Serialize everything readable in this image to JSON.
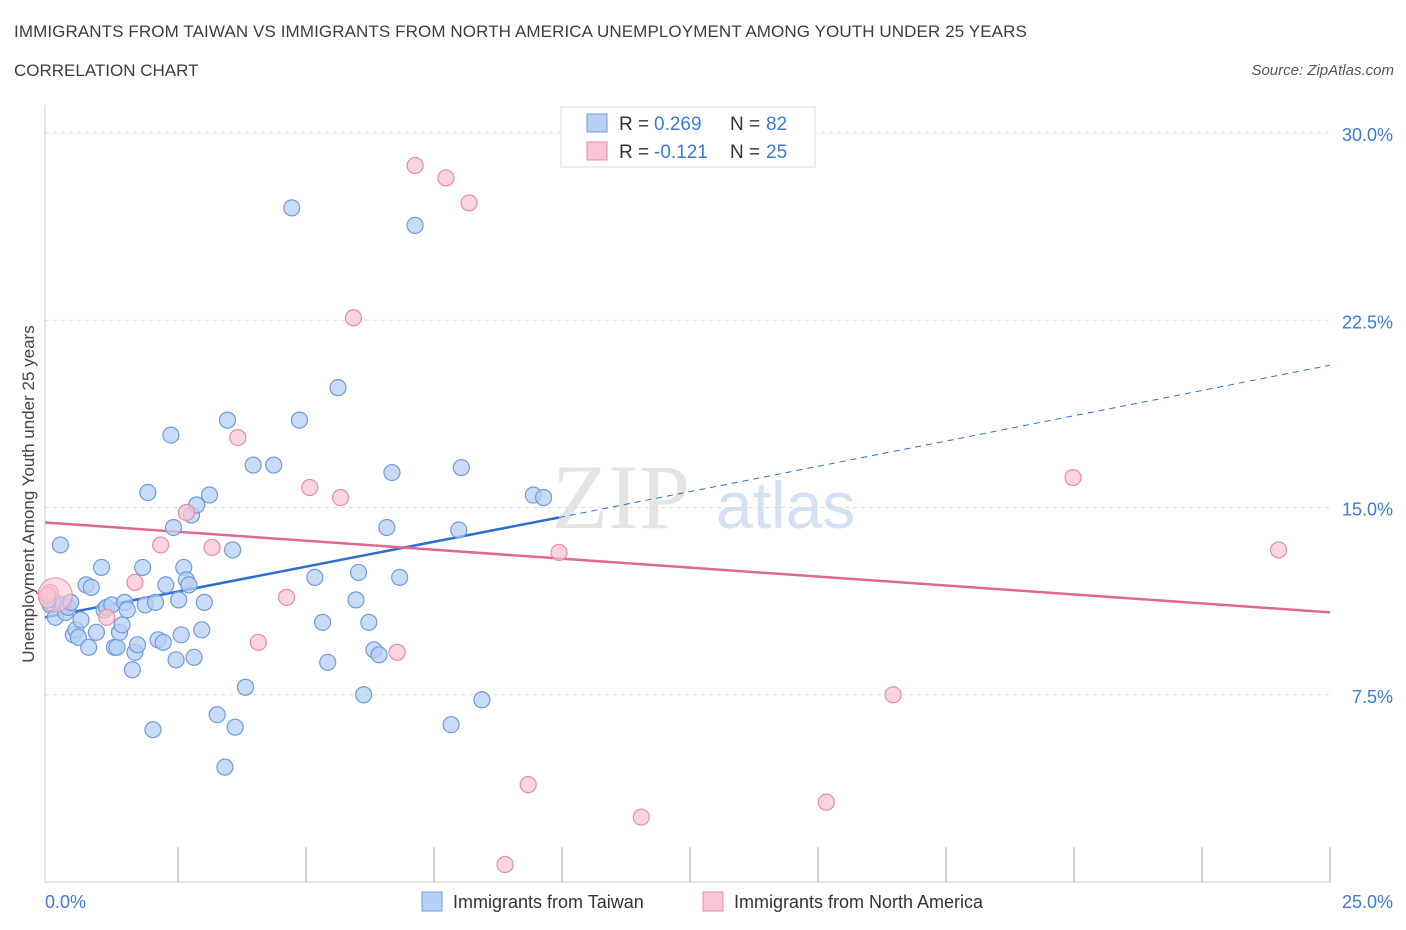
{
  "title": "IMMIGRANTS FROM TAIWAN VS IMMIGRANTS FROM NORTH AMERICA UNEMPLOYMENT AMONG YOUTH UNDER 25 YEARS",
  "subtitle": "CORRELATION CHART",
  "source": "Source: ZipAtlas.com",
  "watermark": {
    "zip": "ZIP",
    "atlas": "atlas"
  },
  "colors": {
    "taiwan_fill": "#b7d0f4",
    "taiwan_stroke": "#6f9bdc",
    "taiwan_line": "#2d6fcf",
    "na_fill": "#f8c6d5",
    "na_stroke": "#e98aa8",
    "na_line": "#e0678f",
    "value_blue": "#3d7bd1",
    "grid": "#dddddd",
    "axis": "#cccccc"
  },
  "legend_box": {
    "r_label": "R = ",
    "n_label": "N = ",
    "rows": [
      {
        "series": "taiwan",
        "r": "0.269",
        "n": "82"
      },
      {
        "series": "na",
        "r": "-0.121",
        "n": "25"
      }
    ]
  },
  "bottom_legend": [
    "Immigrants from Taiwan",
    "Immigrants from North America"
  ],
  "chart_data": {
    "type": "scatter",
    "title": "IMMIGRANTS FROM TAIWAN VS IMMIGRANTS FROM NORTH AMERICA UNEMPLOYMENT AMONG YOUTH UNDER 25 YEARS",
    "subtitle": "CORRELATION CHART",
    "xlabel": "",
    "ylabel": "Unemployment Among Youth under 25 years",
    "xlim": [
      0,
      25
    ],
    "ylim": [
      0,
      30
    ],
    "x_tick_labels": [
      "0.0%",
      "25.0%"
    ],
    "y_ticks": [
      7.5,
      15.0,
      22.5,
      30.0
    ],
    "y_tick_labels": [
      "7.5%",
      "15.0%",
      "22.5%",
      "30.0%"
    ],
    "grid": true,
    "legend": "top-center",
    "series": [
      {
        "name": "Immigrants from Taiwan",
        "r": 0.269,
        "n": 82,
        "points": [
          [
            0.1,
            11.1
          ],
          [
            0.15,
            11.3
          ],
          [
            0.2,
            10.6
          ],
          [
            0.3,
            13.5
          ],
          [
            0.35,
            11.1
          ],
          [
            0.4,
            10.8
          ],
          [
            0.45,
            11.0
          ],
          [
            0.5,
            11.2
          ],
          [
            0.55,
            9.9
          ],
          [
            0.6,
            10.1
          ],
          [
            0.65,
            9.8
          ],
          [
            0.7,
            10.5
          ],
          [
            0.8,
            11.9
          ],
          [
            0.85,
            9.4
          ],
          [
            0.9,
            11.8
          ],
          [
            1.0,
            10.0
          ],
          [
            1.1,
            12.6
          ],
          [
            1.15,
            10.9
          ],
          [
            1.2,
            11.0
          ],
          [
            1.3,
            11.1
          ],
          [
            1.35,
            9.4
          ],
          [
            1.4,
            9.4
          ],
          [
            1.45,
            10.0
          ],
          [
            1.5,
            10.3
          ],
          [
            1.55,
            11.2
          ],
          [
            1.6,
            10.9
          ],
          [
            1.7,
            8.5
          ],
          [
            1.75,
            9.2
          ],
          [
            1.8,
            9.5
          ],
          [
            1.9,
            12.6
          ],
          [
            1.95,
            11.1
          ],
          [
            2.0,
            15.6
          ],
          [
            2.1,
            6.1
          ],
          [
            2.15,
            11.2
          ],
          [
            2.2,
            9.7
          ],
          [
            2.3,
            9.6
          ],
          [
            2.35,
            11.9
          ],
          [
            2.45,
            17.9
          ],
          [
            2.5,
            14.2
          ],
          [
            2.55,
            8.9
          ],
          [
            2.6,
            11.3
          ],
          [
            2.65,
            9.9
          ],
          [
            2.7,
            12.6
          ],
          [
            2.75,
            12.1
          ],
          [
            2.8,
            11.9
          ],
          [
            2.85,
            14.7
          ],
          [
            2.9,
            9.0
          ],
          [
            2.95,
            15.1
          ],
          [
            3.05,
            10.1
          ],
          [
            3.1,
            11.2
          ],
          [
            3.2,
            15.5
          ],
          [
            3.35,
            6.7
          ],
          [
            3.5,
            4.6
          ],
          [
            3.55,
            18.5
          ],
          [
            3.65,
            13.3
          ],
          [
            3.7,
            6.2
          ],
          [
            3.9,
            7.8
          ],
          [
            4.05,
            16.7
          ],
          [
            4.45,
            16.7
          ],
          [
            4.8,
            27.0
          ],
          [
            4.95,
            18.5
          ],
          [
            5.25,
            12.2
          ],
          [
            5.4,
            10.4
          ],
          [
            5.5,
            8.8
          ],
          [
            5.7,
            19.8
          ],
          [
            6.05,
            11.3
          ],
          [
            6.1,
            12.4
          ],
          [
            6.2,
            7.5
          ],
          [
            6.3,
            10.4
          ],
          [
            6.4,
            9.3
          ],
          [
            6.5,
            9.1
          ],
          [
            6.65,
            14.2
          ],
          [
            6.75,
            16.4
          ],
          [
            6.9,
            12.2
          ],
          [
            7.2,
            26.3
          ],
          [
            7.9,
            6.3
          ],
          [
            8.05,
            14.1
          ],
          [
            8.1,
            16.6
          ],
          [
            8.5,
            7.3
          ],
          [
            9.5,
            15.5
          ],
          [
            9.7,
            15.4
          ],
          [
            0.05,
            11.3
          ]
        ]
      },
      {
        "name": "Immigrants from North America",
        "r": -0.121,
        "n": 25,
        "points": [
          [
            0.1,
            11.6
          ],
          [
            1.2,
            10.6
          ],
          [
            1.75,
            12.0
          ],
          [
            2.25,
            13.5
          ],
          [
            2.75,
            14.8
          ],
          [
            3.25,
            13.4
          ],
          [
            3.75,
            17.8
          ],
          [
            4.15,
            9.6
          ],
          [
            4.7,
            11.4
          ],
          [
            5.15,
            15.8
          ],
          [
            5.75,
            15.4
          ],
          [
            6.0,
            22.6
          ],
          [
            6.85,
            9.2
          ],
          [
            7.2,
            28.7
          ],
          [
            7.8,
            28.2
          ],
          [
            8.25,
            27.2
          ],
          [
            8.95,
            0.7
          ],
          [
            9.4,
            3.9
          ],
          [
            10.0,
            13.2
          ],
          [
            11.6,
            2.6
          ],
          [
            15.2,
            3.2
          ],
          [
            16.5,
            7.5
          ],
          [
            20.0,
            16.2
          ],
          [
            24.0,
            13.3
          ],
          [
            0.05,
            11.5
          ]
        ]
      }
    ],
    "trend_lines": [
      {
        "series": "Immigrants from Taiwan",
        "solid_from": [
          0.0,
          10.6
        ],
        "solid_to": [
          10.0,
          14.6
        ],
        "dashed_to": [
          25.0,
          20.7
        ]
      },
      {
        "series": "Immigrants from North America",
        "from": [
          0.0,
          14.4
        ],
        "to": [
          25.0,
          10.8
        ]
      }
    ]
  }
}
